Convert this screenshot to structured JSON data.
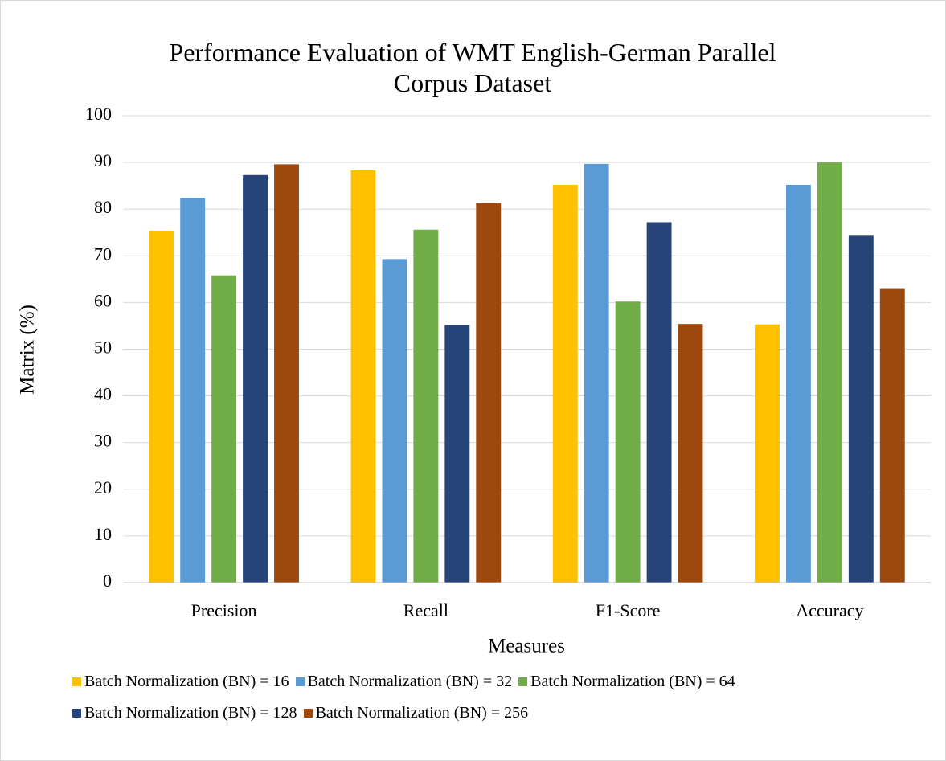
{
  "chart_data": {
    "type": "bar",
    "title": "Performance Evaluation of WMT English-German Parallel Corpus Dataset",
    "xlabel": "Measures",
    "ylabel": "Matrix (%)",
    "categories": [
      "Precision",
      "Recall",
      "F1-Score",
      "Accuracy"
    ],
    "series": [
      {
        "name": "Batch Normalization (BN) = 16",
        "color": "#ffc000",
        "values": [
          75.3,
          88.3,
          85.2,
          55.3
        ]
      },
      {
        "name": "Batch Normalization (BN) = 32",
        "color": "#5b9bd5",
        "values": [
          82.4,
          69.3,
          89.7,
          85.2
        ]
      },
      {
        "name": "Batch Normalization (BN) = 64",
        "color": "#70ad47",
        "values": [
          65.8,
          75.6,
          60.2,
          90.0
        ]
      },
      {
        "name": "Batch Normalization (BN) = 128",
        "color": "#264478",
        "values": [
          87.3,
          55.2,
          77.2,
          74.3
        ]
      },
      {
        "name": "Batch Normalization (BN) = 256",
        "color": "#9e480e",
        "values": [
          89.6,
          81.3,
          55.4,
          62.9
        ]
      }
    ],
    "ylim": [
      0,
      100
    ],
    "yticks": [
      0,
      10,
      20,
      30,
      40,
      50,
      60,
      70,
      80,
      90,
      100
    ],
    "grid": true,
    "legend": "bottom"
  }
}
